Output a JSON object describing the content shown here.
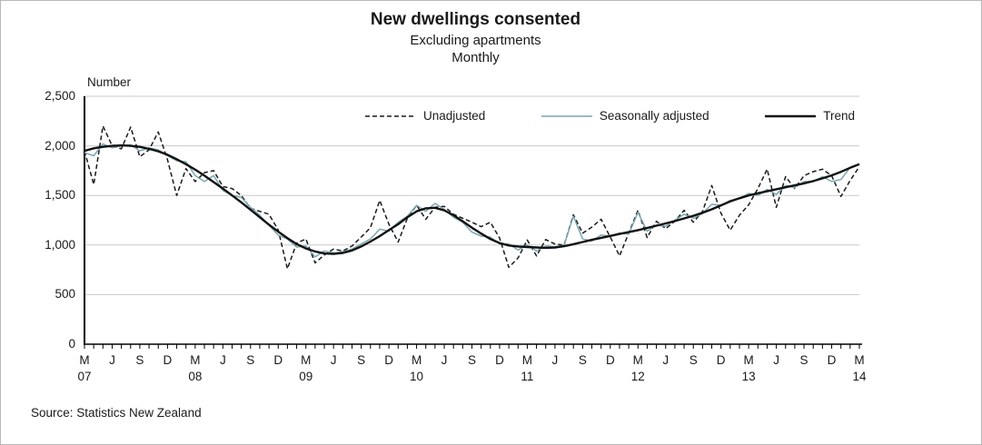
{
  "header": {
    "title": "New dwellings consented",
    "subtitle": "Excluding apartments",
    "frequency": "Monthly"
  },
  "unit_label": "Number",
  "source_note": "Source: Statistics New Zealand",
  "colors": {
    "unadjusted": "#1a1a1a",
    "seasonally_adjusted": "#7aa6b0",
    "trend": "#111111",
    "gridline": "#c9c9c9",
    "axis": "#000000"
  },
  "chart_data": {
    "type": "line",
    "title": "New dwellings consented",
    "subtitle": "Excluding apartments",
    "frequency": "Monthly",
    "ylabel": "Number",
    "xlabel": "",
    "ylim": [
      0,
      2500
    ],
    "y_ticks": [
      0,
      500,
      1000,
      1500,
      2000,
      2500
    ],
    "y_tick_labels": [
      "0",
      "500",
      "1,000",
      "1,500",
      "2,000",
      "2,500"
    ],
    "grid": "horizontal",
    "legend_position": "top-right-inside",
    "x_start": "2007-03",
    "x_end": "2014-03",
    "x_tick_labels": [
      "M",
      "",
      "",
      "J",
      "",
      "",
      "S",
      "",
      "",
      "D",
      "",
      "",
      "M",
      "",
      "",
      "J",
      "",
      "",
      "S",
      "",
      "",
      "D",
      "",
      "",
      "M",
      "",
      "",
      "J",
      "",
      "",
      "S",
      "",
      "",
      "D",
      "",
      "",
      "M",
      "",
      "",
      "J",
      "",
      "",
      "S",
      "",
      "",
      "D",
      "",
      "",
      "M",
      "",
      "",
      "J",
      "",
      "",
      "S",
      "",
      "",
      "D",
      "",
      "",
      "M",
      "",
      "",
      "J",
      "",
      "",
      "S",
      "",
      "",
      "D",
      "",
      "",
      "M",
      "",
      "",
      "J",
      "",
      "",
      "S",
      "",
      "",
      "D",
      "",
      "",
      "M"
    ],
    "x_year_labels": [
      {
        "i": 0,
        "text": "07"
      },
      {
        "i": 12,
        "text": "08"
      },
      {
        "i": 24,
        "text": "09"
      },
      {
        "i": 36,
        "text": "10"
      },
      {
        "i": 48,
        "text": "11"
      },
      {
        "i": 60,
        "text": "12"
      },
      {
        "i": 72,
        "text": "13"
      },
      {
        "i": 84,
        "text": "14"
      }
    ],
    "series": [
      {
        "name": "Unadjusted",
        "color": "#1a1a1a",
        "dash": "5 3",
        "width": 1.5,
        "values": [
          1950,
          1610,
          2200,
          2000,
          1970,
          2190,
          1890,
          1960,
          2140,
          1860,
          1500,
          1770,
          1640,
          1730,
          1750,
          1590,
          1570,
          1500,
          1370,
          1340,
          1310,
          1150,
          760,
          1020,
          1060,
          820,
          900,
          960,
          940,
          990,
          1080,
          1175,
          1450,
          1210,
          1030,
          1270,
          1400,
          1260,
          1380,
          1390,
          1310,
          1270,
          1230,
          1185,
          1230,
          1070,
          775,
          870,
          1050,
          890,
          1055,
          1010,
          1000,
          1305,
          1120,
          1180,
          1260,
          1080,
          890,
          1120,
          1350,
          1075,
          1240,
          1165,
          1240,
          1350,
          1230,
          1340,
          1600,
          1320,
          1150,
          1300,
          1405,
          1570,
          1765,
          1380,
          1690,
          1570,
          1700,
          1740,
          1765,
          1700,
          1490,
          1650,
          1790
        ]
      },
      {
        "name": "Seasonally adjusted",
        "color": "#7aa6b0",
        "dash": "",
        "width": 1.5,
        "values": [
          1930,
          1900,
          2020,
          1980,
          2000,
          2010,
          1950,
          1980,
          1960,
          1900,
          1850,
          1840,
          1700,
          1640,
          1700,
          1550,
          1500,
          1480,
          1380,
          1300,
          1200,
          1100,
          1060,
          980,
          990,
          880,
          940,
          920,
          930,
          960,
          1010,
          1060,
          1160,
          1140,
          1230,
          1290,
          1400,
          1340,
          1420,
          1360,
          1280,
          1230,
          1130,
          1090,
          1080,
          1010,
          1010,
          950,
          1000,
          940,
          990,
          980,
          1000,
          1290,
          1060,
          1040,
          1100,
          1090,
          1120,
          1110,
          1330,
          1140,
          1200,
          1190,
          1250,
          1310,
          1270,
          1320,
          1410,
          1400,
          1450,
          1470,
          1520,
          1500,
          1560,
          1510,
          1600,
          1580,
          1640,
          1640,
          1690,
          1640,
          1660,
          1780,
          1815
        ]
      },
      {
        "name": "Trend",
        "color": "#111111",
        "dash": "",
        "width": 2.4,
        "values": [
          1950,
          1975,
          1990,
          2000,
          2005,
          2000,
          1990,
          1970,
          1945,
          1910,
          1865,
          1815,
          1760,
          1700,
          1635,
          1570,
          1500,
          1430,
          1355,
          1280,
          1205,
          1135,
          1070,
          1010,
          965,
          935,
          915,
          910,
          920,
          945,
          985,
          1035,
          1090,
          1150,
          1210,
          1280,
          1340,
          1370,
          1375,
          1350,
          1300,
          1240,
          1175,
          1115,
          1060,
          1020,
          995,
          985,
          980,
          975,
          972,
          975,
          988,
          1008,
          1030,
          1052,
          1072,
          1092,
          1112,
          1130,
          1150,
          1172,
          1195,
          1218,
          1242,
          1268,
          1295,
          1325,
          1360,
          1400,
          1440,
          1472,
          1500,
          1522,
          1542,
          1562,
          1582,
          1602,
          1622,
          1645,
          1672,
          1702,
          1738,
          1778,
          1815
        ]
      }
    ]
  }
}
